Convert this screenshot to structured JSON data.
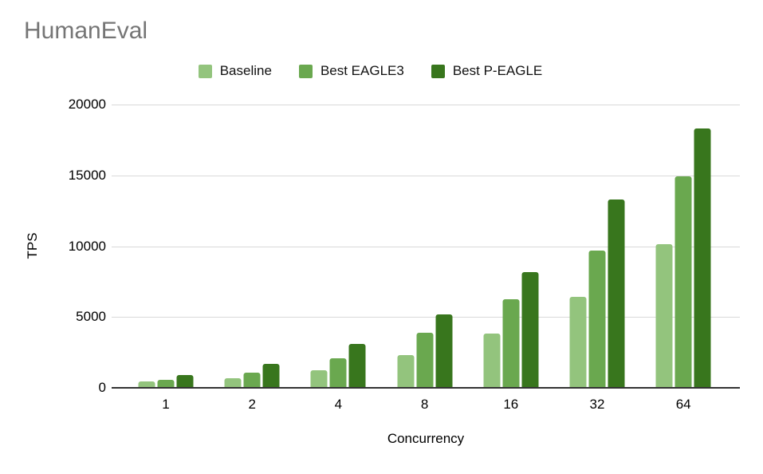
{
  "title": "HumanEval",
  "chart_data": {
    "type": "bar",
    "title": "HumanEval",
    "xlabel": "Concurrency",
    "ylabel": "TPS",
    "categories": [
      "1",
      "2",
      "4",
      "8",
      "16",
      "32",
      "64"
    ],
    "series": [
      {
        "name": "Baseline",
        "color": "#93c47d",
        "values": [
          450,
          700,
          1250,
          2300,
          3850,
          6450,
          10150
        ]
      },
      {
        "name": "Best EAGLE3",
        "color": "#6aa84f",
        "values": [
          550,
          1100,
          2100,
          3900,
          6250,
          9700,
          14950
        ]
      },
      {
        "name": "Best P-EAGLE",
        "color": "#38761d",
        "values": [
          900,
          1700,
          3100,
          5200,
          8150,
          13300,
          18300
        ]
      }
    ],
    "ylim": [
      0,
      20000
    ],
    "yticks": [
      0,
      5000,
      10000,
      15000,
      20000
    ],
    "grid": true,
    "legend_position": "top",
    "colors": {
      "title_text": "#757575",
      "axis_text": "#000000",
      "gridline": "#d9d9d9",
      "axis_line": "#333333",
      "background": "#ffffff"
    }
  }
}
